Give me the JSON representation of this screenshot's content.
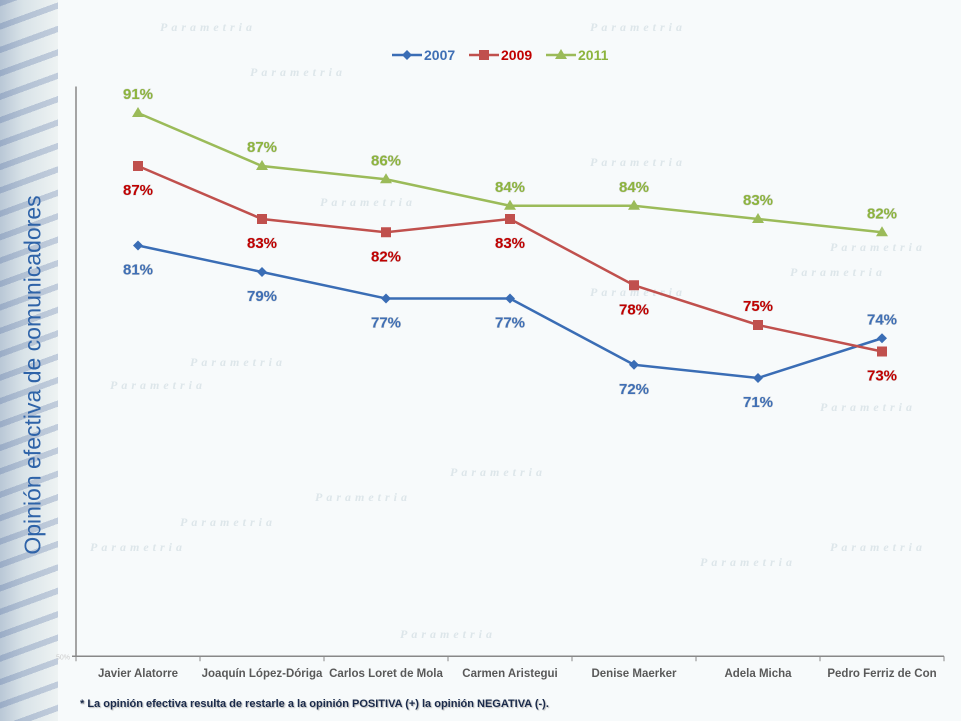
{
  "chart_data": {
    "type": "line",
    "title": "",
    "ylabel": "Opinión efectiva de comunicadores",
    "xlabel": "",
    "ylim": [
      50,
      93
    ],
    "ytick_labels": [
      "50%"
    ],
    "grid": false,
    "legend_position": "top",
    "categories": [
      "Javier Alatorre",
      "Joaquín López-Dóriga",
      "Carlos Loret de Mola",
      "Carmen Aristegui",
      "Denise Maerker",
      "Adela Micha",
      "Pedro Ferriz de Con"
    ],
    "series": [
      {
        "name": "2007",
        "color": "#3a6db5",
        "label_color": "#3f6fb5",
        "marker": "diamond",
        "values": [
          81,
          79,
          77,
          77,
          72,
          71,
          74
        ],
        "labels": [
          "81%",
          "79%",
          "77%",
          "77%",
          "72%",
          "71%",
          "74%"
        ]
      },
      {
        "name": "2009",
        "color": "#c0504d",
        "label_color": "#c00000",
        "marker": "square",
        "values": [
          87,
          83,
          82,
          83,
          78,
          75,
          73
        ],
        "labels": [
          "87%",
          "83%",
          "82%",
          "83%",
          "78%",
          "75%",
          "73%"
        ]
      },
      {
        "name": "2011",
        "color": "#9bbb59",
        "label_color": "#8db43e",
        "marker": "triangle",
        "values": [
          91,
          87,
          86,
          84,
          84,
          83,
          82
        ],
        "labels": [
          "91%",
          "87%",
          "86%",
          "84%",
          "84%",
          "83%",
          "82%"
        ]
      }
    ]
  },
  "footnote": "* La opinión efectiva resulta de restarle a la opinión POSITIVA (+) la opinión NEGATIVA (-).",
  "watermark": "Parametria"
}
